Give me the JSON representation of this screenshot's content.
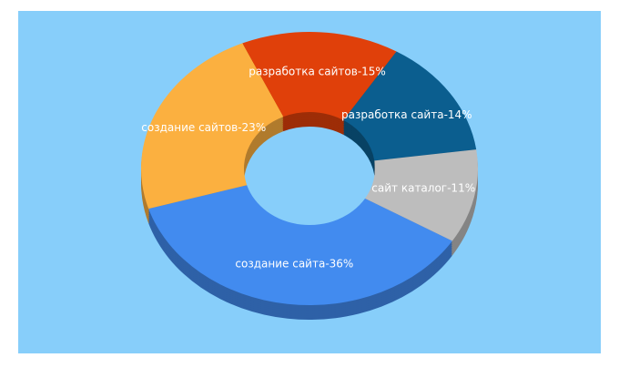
{
  "chart_data": {
    "type": "donut3d",
    "values": [
      36,
      23,
      15,
      14,
      11
    ],
    "value_labels": [
      "создание сайта-36%",
      "создание сайтов-23%",
      "разработка сайтов-15%",
      "разработка сайта-14%",
      "сайт каталог-11%"
    ],
    "colors": [
      "#428bef",
      "#fbb040",
      "#e0400a",
      "#0b5e8f",
      "#bdbdbd"
    ]
  }
}
